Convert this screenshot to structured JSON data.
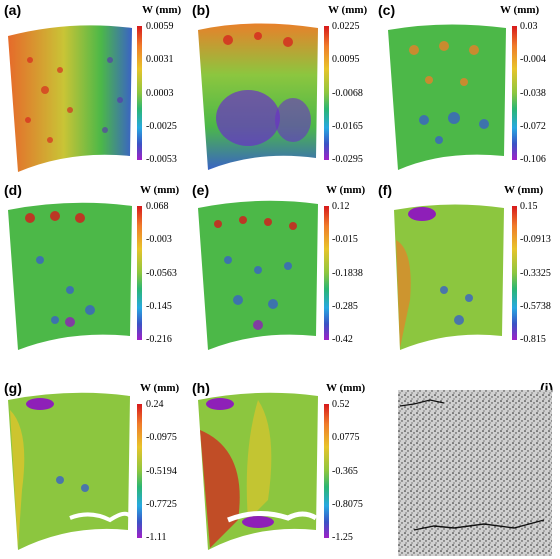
{
  "panels": [
    {
      "label": "(a)",
      "unit": "W (mm)",
      "ticks": [
        "0.0059",
        "0.0031",
        "0.0003",
        "-0.0025",
        "-0.0053"
      ]
    },
    {
      "label": "(b)",
      "unit": "W (mm)",
      "ticks": [
        "0.0225",
        "0.0095",
        "-0.0068",
        "-0.0165",
        "-0.0295"
      ]
    },
    {
      "label": "(c)",
      "unit": "W (mm)",
      "ticks": [
        "0.03",
        "-0.004",
        "-0.038",
        "-0.072",
        "-0.106"
      ]
    },
    {
      "label": "(d)",
      "unit": "W (mm)",
      "ticks": [
        "0.068",
        "-0.003",
        "-0.0563",
        "-0.145",
        "-0.216"
      ]
    },
    {
      "label": "(e)",
      "unit": "W (mm)",
      "ticks": [
        "0.12",
        "-0.015",
        "-0.1838",
        "-0.285",
        "-0.42"
      ]
    },
    {
      "label": "(f)",
      "unit": "W (mm)",
      "ticks": [
        "0.15",
        "-0.0913",
        "-0.3325",
        "-0.5738",
        "-0.815"
      ]
    },
    {
      "label": "(g)",
      "unit": "W (mm)",
      "ticks": [
        "0.24",
        "-0.0975",
        "-0.5194",
        "-0.7725",
        "-1.11"
      ]
    },
    {
      "label": "(h)",
      "unit": "W (mm)",
      "ticks": [
        "0.52",
        "0.0775",
        "-0.365",
        "-0.8075",
        "-1.25"
      ]
    },
    {
      "label": "(i)"
    }
  ],
  "colors": {
    "high": "#d7191c",
    "mid": "#4cb848",
    "low": "#8e1fb8"
  }
}
